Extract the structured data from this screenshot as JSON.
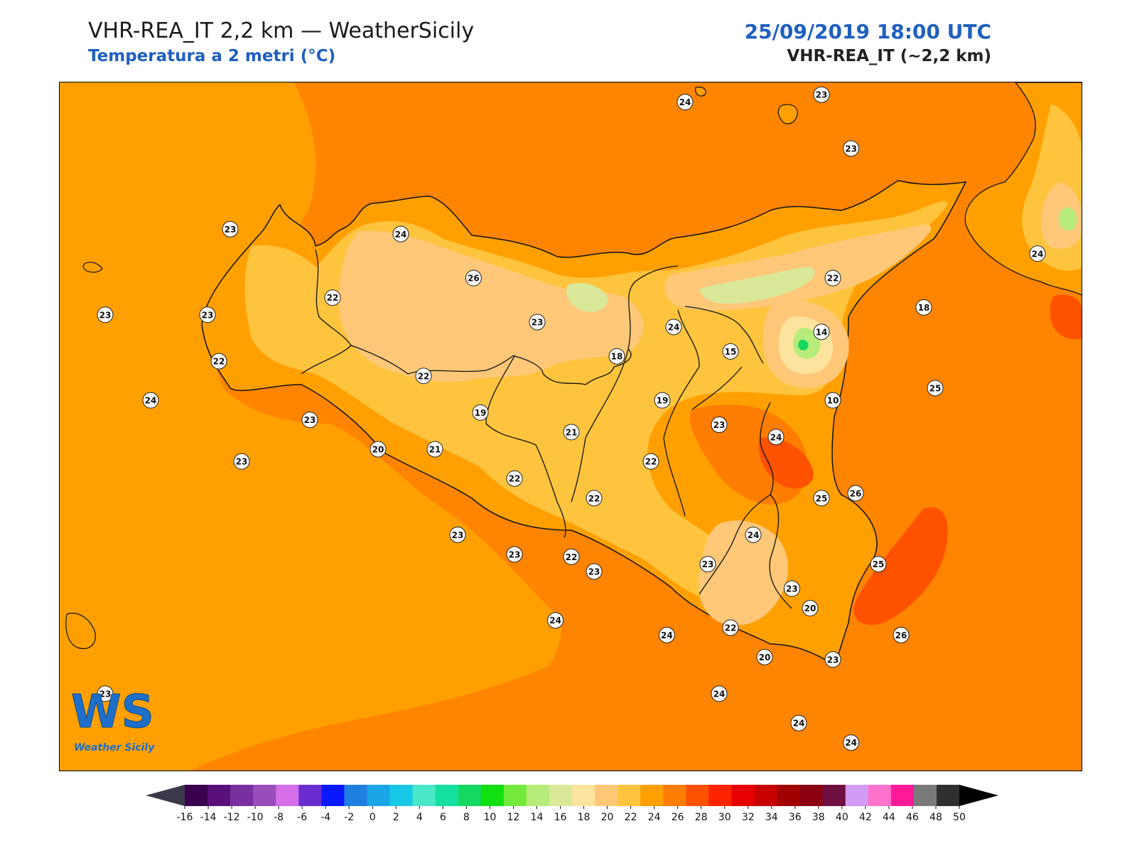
{
  "header": {
    "title": "VHR-REA_IT 2,2 km — WeatherSicily",
    "subtitle": "Temperatura a 2 metri (°C)",
    "datetime": "25/09/2019 18:00 UTC",
    "model": "VHR-REA_IT (~2,2 km)"
  },
  "logo": {
    "mark": "WS",
    "text": "Weather Sicily"
  },
  "stations": [
    {
      "value": "24",
      "lon": 14.35,
      "lat": 38.82
    },
    {
      "value": "23",
      "lon": 14.95,
      "lat": 38.85
    },
    {
      "value": "23",
      "lon": 15.08,
      "lat": 38.63
    },
    {
      "value": "23",
      "lon": 12.35,
      "lat": 38.3
    },
    {
      "value": "24",
      "lon": 13.1,
      "lat": 38.28
    },
    {
      "value": "26",
      "lon": 13.42,
      "lat": 38.1
    },
    {
      "value": "23",
      "lon": 11.8,
      "lat": 37.95
    },
    {
      "value": "23",
      "lon": 12.25,
      "lat": 37.95
    },
    {
      "value": "22",
      "lon": 12.8,
      "lat": 38.02
    },
    {
      "value": "23",
      "lon": 13.7,
      "lat": 37.92
    },
    {
      "value": "24",
      "lon": 14.3,
      "lat": 37.9
    },
    {
      "value": "22",
      "lon": 15.0,
      "lat": 38.1
    },
    {
      "value": "24",
      "lon": 15.9,
      "lat": 38.2
    },
    {
      "value": "18",
      "lon": 15.4,
      "lat": 37.98
    },
    {
      "value": "14",
      "lon": 14.95,
      "lat": 37.88
    },
    {
      "value": "15",
      "lon": 14.55,
      "lat": 37.8
    },
    {
      "value": "18",
      "lon": 14.05,
      "lat": 37.78
    },
    {
      "value": "22",
      "lon": 12.3,
      "lat": 37.76
    },
    {
      "value": "22",
      "lon": 13.2,
      "lat": 37.7
    },
    {
      "value": "25",
      "lon": 15.45,
      "lat": 37.65
    },
    {
      "value": "10",
      "lon": 15.0,
      "lat": 37.6
    },
    {
      "value": "19",
      "lon": 14.25,
      "lat": 37.6
    },
    {
      "value": "24",
      "lon": 12.0,
      "lat": 37.6
    },
    {
      "value": "23",
      "lon": 12.7,
      "lat": 37.52
    },
    {
      "value": "19",
      "lon": 13.45,
      "lat": 37.55
    },
    {
      "value": "23",
      "lon": 14.5,
      "lat": 37.5
    },
    {
      "value": "21",
      "lon": 13.85,
      "lat": 37.47
    },
    {
      "value": "24",
      "lon": 14.75,
      "lat": 37.45
    },
    {
      "value": "20",
      "lon": 13.0,
      "lat": 37.4
    },
    {
      "value": "21",
      "lon": 13.25,
      "lat": 37.4
    },
    {
      "value": "23",
      "lon": 12.4,
      "lat": 37.35
    },
    {
      "value": "22",
      "lon": 14.2,
      "lat": 37.35
    },
    {
      "value": "22",
      "lon": 13.6,
      "lat": 37.28
    },
    {
      "value": "22",
      "lon": 13.95,
      "lat": 37.2
    },
    {
      "value": "25",
      "lon": 14.95,
      "lat": 37.2
    },
    {
      "value": "26",
      "lon": 15.1,
      "lat": 37.22
    },
    {
      "value": "23",
      "lon": 13.35,
      "lat": 37.05
    },
    {
      "value": "24",
      "lon": 14.65,
      "lat": 37.05
    },
    {
      "value": "23",
      "lon": 13.6,
      "lat": 36.97
    },
    {
      "value": "22",
      "lon": 13.85,
      "lat": 36.96
    },
    {
      "value": "23",
      "lon": 14.45,
      "lat": 36.93
    },
    {
      "value": "25",
      "lon": 15.2,
      "lat": 36.93
    },
    {
      "value": "23",
      "lon": 14.82,
      "lat": 36.83
    },
    {
      "value": "23",
      "lon": 13.95,
      "lat": 36.9
    },
    {
      "value": "20",
      "lon": 14.9,
      "lat": 36.75
    },
    {
      "value": "24",
      "lon": 13.78,
      "lat": 36.7
    },
    {
      "value": "24",
      "lon": 14.27,
      "lat": 36.64
    },
    {
      "value": "22",
      "lon": 14.55,
      "lat": 36.67
    },
    {
      "value": "26",
      "lon": 15.3,
      "lat": 36.64
    },
    {
      "value": "20",
      "lon": 14.7,
      "lat": 36.55
    },
    {
      "value": "23",
      "lon": 15.0,
      "lat": 36.54
    },
    {
      "value": "24",
      "lon": 14.5,
      "lat": 36.4
    },
    {
      "value": "24",
      "lon": 14.85,
      "lat": 36.28
    },
    {
      "value": "23",
      "lon": 11.8,
      "lat": 36.4
    },
    {
      "value": "24",
      "lon": 15.08,
      "lat": 36.2
    }
  ],
  "colorbar": {
    "ticks": [
      "-16",
      "-14",
      "-12",
      "-10",
      "-8",
      "-6",
      "-4",
      "-2",
      "0",
      "2",
      "4",
      "6",
      "8",
      "10",
      "12",
      "14",
      "16",
      "18",
      "20",
      "22",
      "24",
      "26",
      "28",
      "30",
      "32",
      "34",
      "36",
      "38",
      "40",
      "42",
      "44",
      "46",
      "48",
      "50"
    ],
    "colors": [
      "#3b0050",
      "#5a0f7a",
      "#7a2fa0",
      "#9a4dba",
      "#d66ee8",
      "#6a2ed0",
      "#0a18ff",
      "#1f7fe0",
      "#1aa6e6",
      "#17c9e6",
      "#4ae8c8",
      "#14e0a0",
      "#14d860",
      "#11e010",
      "#74ea3c",
      "#b8ec7a",
      "#dae89a",
      "#fde49e",
      "#fec878",
      "#ffc43e",
      "#ffa000",
      "#ff7d00",
      "#ff5200",
      "#ff2400",
      "#e80000",
      "#c80000",
      "#a20000",
      "#8a0012",
      "#6f1040",
      "#d29bf5",
      "#ff73cc",
      "#ff1a9a",
      "#7a7a7a",
      "#303030"
    ],
    "lower_extend_color": "#3a3a4a",
    "upper_extend_color": "#000000"
  }
}
